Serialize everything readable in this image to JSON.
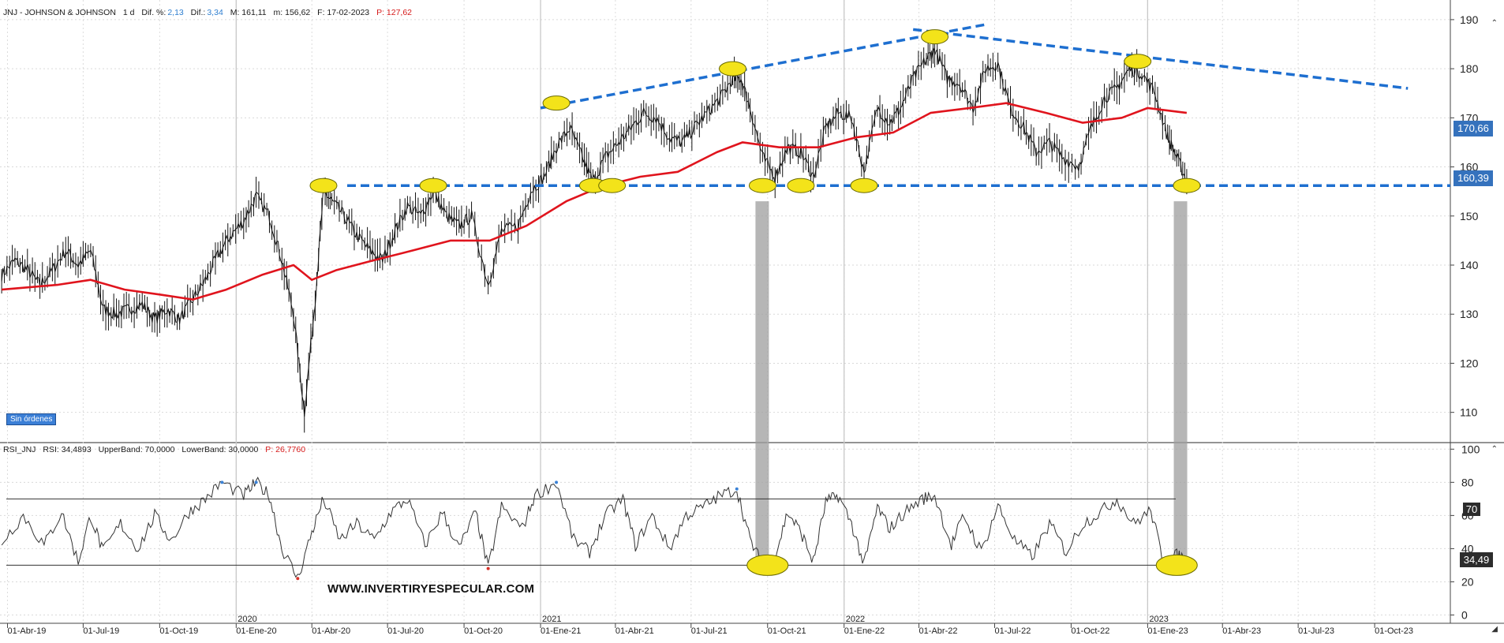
{
  "header": {
    "ticker": "JNJ - JOHNSON & JOHNSON",
    "timeframe": "1 d",
    "dif_pct_label": "Dif. %:",
    "dif_pct_value": "2,13",
    "dif_label": "Dif.:",
    "dif_value": "3,34",
    "max_label": "M: 161,11",
    "min_label": "m: 156,62",
    "date_label": "F: 17-02-2023",
    "p_label": "P: 127,62"
  },
  "orders_badge": "Sin órdenes",
  "watermark": "WWW.INVERTIRYESPECULAR.COM",
  "price_tags": {
    "ma": "170,66",
    "last": "160,39"
  },
  "rsi_header": {
    "label": "RSI_JNJ",
    "rsi": "RSI: 34,4893",
    "upper": "UpperBand: 70,0000",
    "lower": "LowerBand: 30,0000",
    "p": "P: 26,7760"
  },
  "rsi_tags": {
    "value": "34,49",
    "upper": "70"
  },
  "colors": {
    "price": "#111111",
    "ma": "#e0141d",
    "trend": "#1e6fd0",
    "marker": "#f3e31a",
    "rsi_over": "#3b82d6",
    "rsi_under": "#d6322a"
  },
  "chart_data": [
    {
      "type": "line",
      "title": "JNJ - JOHNSON & JOHNSON  1 d",
      "x_ticks": [
        "01-Abr-19",
        "01-Jul-19",
        "01-Oct-19",
        "01-Ene-20",
        "01-Abr-20",
        "01-Jul-20",
        "01-Oct-20",
        "01-Ene-21",
        "01-Abr-21",
        "01-Jul-21",
        "01-Oct-21",
        "01-Ene-22",
        "01-Abr-22",
        "01-Jul-22",
        "01-Oct-22",
        "01-Ene-23",
        "01-Abr-23",
        "01-Jul-23",
        "01-Oct-23"
      ],
      "year_labels": [
        "2020",
        "2021",
        "2022",
        "2023"
      ],
      "y_ticks": [
        110,
        120,
        130,
        140,
        150,
        160,
        170,
        180,
        190
      ],
      "ylim": [
        104,
        194
      ],
      "grid": true,
      "series": [
        {
          "name": "JNJ",
          "points": [
            [
              "2019-03-25",
              138
            ],
            [
              "2019-04-10",
              141
            ],
            [
              "2019-04-25",
              139
            ],
            [
              "2019-05-10",
              136
            ],
            [
              "2019-05-25",
              139
            ],
            [
              "2019-06-10",
              143
            ],
            [
              "2019-06-25",
              140
            ],
            [
              "2019-07-10",
              143
            ],
            [
              "2019-07-25",
              131
            ],
            [
              "2019-08-10",
              130
            ],
            [
              "2019-08-25",
              131
            ],
            [
              "2019-09-10",
              132
            ],
            [
              "2019-09-25",
              129
            ],
            [
              "2019-10-10",
              131
            ],
            [
              "2019-10-25",
              129
            ],
            [
              "2019-11-10",
              133
            ],
            [
              "2019-11-25",
              137
            ],
            [
              "2019-12-10",
              142
            ],
            [
              "2019-12-25",
              146
            ],
            [
              "2020-01-10",
              149
            ],
            [
              "2020-01-25",
              154
            ],
            [
              "2020-02-10",
              150
            ],
            [
              "2020-02-25",
              141
            ],
            [
              "2020-03-10",
              130
            ],
            [
              "2020-03-23",
              110
            ],
            [
              "2020-04-05",
              133
            ],
            [
              "2020-04-15",
              155
            ],
            [
              "2020-04-25",
              153
            ],
            [
              "2020-05-10",
              150
            ],
            [
              "2020-05-25",
              146
            ],
            [
              "2020-06-10",
              143
            ],
            [
              "2020-06-25",
              141
            ],
            [
              "2020-07-10",
              147
            ],
            [
              "2020-07-25",
              152
            ],
            [
              "2020-08-10",
              150
            ],
            [
              "2020-08-25",
              155
            ],
            [
              "2020-09-10",
              150
            ],
            [
              "2020-09-25",
              148
            ],
            [
              "2020-10-10",
              150
            ],
            [
              "2020-10-30",
              136
            ],
            [
              "2020-11-15",
              147
            ],
            [
              "2020-12-05",
              148
            ],
            [
              "2020-12-20",
              155
            ],
            [
              "2021-01-05",
              158
            ],
            [
              "2021-01-20",
              164
            ],
            [
              "2021-02-05",
              168
            ],
            [
              "2021-02-20",
              162
            ],
            [
              "2021-03-05",
              157
            ],
            [
              "2021-03-20",
              162
            ],
            [
              "2021-04-05",
              165
            ],
            [
              "2021-04-20",
              168
            ],
            [
              "2021-05-05",
              171
            ],
            [
              "2021-05-20",
              170
            ],
            [
              "2021-06-05",
              166
            ],
            [
              "2021-06-20",
              165
            ],
            [
              "2021-07-05",
              168
            ],
            [
              "2021-07-20",
              171
            ],
            [
              "2021-08-05",
              174
            ],
            [
              "2021-08-20",
              178
            ],
            [
              "2021-08-30",
              178
            ],
            [
              "2021-09-10",
              172
            ],
            [
              "2021-09-25",
              162
            ],
            [
              "2021-10-10",
              158
            ],
            [
              "2021-10-25",
              164
            ],
            [
              "2021-11-10",
              163
            ],
            [
              "2021-11-25",
              158
            ],
            [
              "2021-12-10",
              168
            ],
            [
              "2021-12-25",
              171
            ],
            [
              "2022-01-10",
              170
            ],
            [
              "2022-01-25",
              159
            ],
            [
              "2022-02-10",
              172
            ],
            [
              "2022-02-25",
              169
            ],
            [
              "2022-03-10",
              172
            ],
            [
              "2022-03-25",
              178
            ],
            [
              "2022-04-10",
              182
            ],
            [
              "2022-04-20",
              184
            ],
            [
              "2022-05-05",
              178
            ],
            [
              "2022-05-20",
              177
            ],
            [
              "2022-06-05",
              172
            ],
            [
              "2022-06-20",
              180
            ],
            [
              "2022-07-05",
              181
            ],
            [
              "2022-07-20",
              172
            ],
            [
              "2022-08-05",
              168
            ],
            [
              "2022-08-20",
              163
            ],
            [
              "2022-09-05",
              165
            ],
            [
              "2022-09-20",
              162
            ],
            [
              "2022-10-10",
              160
            ],
            [
              "2022-10-25",
              168
            ],
            [
              "2022-11-10",
              174
            ],
            [
              "2022-11-25",
              176
            ],
            [
              "2022-12-10",
              180
            ],
            [
              "2022-12-25",
              179
            ],
            [
              "2023-01-10",
              175
            ],
            [
              "2023-01-25",
              166
            ],
            [
              "2023-02-05",
              162
            ],
            [
              "2023-02-17",
              157
            ]
          ]
        },
        {
          "name": "MA",
          "points": [
            [
              "2019-03-25",
              135
            ],
            [
              "2019-06-01",
              136
            ],
            [
              "2019-07-10",
              137
            ],
            [
              "2019-08-20",
              135
            ],
            [
              "2019-10-01",
              134
            ],
            [
              "2019-11-10",
              133
            ],
            [
              "2019-12-20",
              135
            ],
            [
              "2020-02-01",
              138
            ],
            [
              "2020-03-10",
              140
            ],
            [
              "2020-04-01",
              137
            ],
            [
              "2020-05-01",
              139
            ],
            [
              "2020-06-15",
              141
            ],
            [
              "2020-08-01",
              143
            ],
            [
              "2020-09-15",
              145
            ],
            [
              "2020-11-01",
              145
            ],
            [
              "2020-12-15",
              148
            ],
            [
              "2021-02-01",
              153
            ],
            [
              "2021-03-15",
              156
            ],
            [
              "2021-05-01",
              158
            ],
            [
              "2021-06-15",
              159
            ],
            [
              "2021-08-01",
              163
            ],
            [
              "2021-09-01",
              165
            ],
            [
              "2021-10-15",
              164
            ],
            [
              "2021-12-01",
              164
            ],
            [
              "2022-01-15",
              166
            ],
            [
              "2022-03-01",
              167
            ],
            [
              "2022-04-15",
              171
            ],
            [
              "2022-06-01",
              172
            ],
            [
              "2022-07-15",
              173
            ],
            [
              "2022-09-01",
              171
            ],
            [
              "2022-10-15",
              169
            ],
            [
              "2022-12-01",
              170
            ],
            [
              "2023-01-01",
              172
            ],
            [
              "2023-02-17",
              171
            ]
          ]
        }
      ],
      "support_level": 156.2,
      "trendlines": [
        {
          "from": [
            "2021-01-01",
            172
          ],
          "to": [
            "2022-06-20",
            189
          ]
        },
        {
          "from": [
            "2022-03-25",
            188
          ],
          "to": [
            "2023-11-10",
            176
          ]
        }
      ],
      "markers": [
        [
          "2020-04-15",
          156.2
        ],
        [
          "2020-08-25",
          156.2
        ],
        [
          "2021-01-20",
          173
        ],
        [
          "2021-03-05",
          156.2
        ],
        [
          "2021-03-28",
          156.2
        ],
        [
          "2021-08-20",
          180
        ],
        [
          "2021-09-25",
          156.2
        ],
        [
          "2021-11-10",
          156.2
        ],
        [
          "2022-01-25",
          156.2
        ],
        [
          "2022-04-20",
          186.5
        ],
        [
          "2022-12-20",
          181.5
        ],
        [
          "2023-02-17",
          156.2
        ]
      ]
    },
    {
      "type": "line",
      "title": "RSI_JNJ",
      "y_ticks": [
        0,
        20,
        40,
        60,
        80,
        100
      ],
      "ylim": [
        -5,
        103
      ],
      "upper_band": 70,
      "lower_band": 30,
      "series": [
        {
          "name": "RSI",
          "points": [
            [
              "2019-03-25",
              44
            ],
            [
              "2019-04-20",
              60
            ],
            [
              "2019-05-15",
              42
            ],
            [
              "2019-06-05",
              62
            ],
            [
              "2019-06-25",
              32
            ],
            [
              "2019-07-10",
              60
            ],
            [
              "2019-07-25",
              38
            ],
            [
              "2019-08-15",
              55
            ],
            [
              "2019-09-05",
              40
            ],
            [
              "2019-09-25",
              60
            ],
            [
              "2019-10-15",
              45
            ],
            [
              "2019-11-05",
              62
            ],
            [
              "2019-11-25",
              70
            ],
            [
              "2019-12-15",
              80
            ],
            [
              "2020-01-10",
              72
            ],
            [
              "2020-01-25",
              80
            ],
            [
              "2020-02-10",
              72
            ],
            [
              "2020-02-25",
              40
            ],
            [
              "2020-03-15",
              22
            ],
            [
              "2020-04-01",
              50
            ],
            [
              "2020-04-15",
              70
            ],
            [
              "2020-05-05",
              45
            ],
            [
              "2020-05-25",
              55
            ],
            [
              "2020-06-15",
              45
            ],
            [
              "2020-07-05",
              62
            ],
            [
              "2020-07-25",
              70
            ],
            [
              "2020-08-15",
              42
            ],
            [
              "2020-09-05",
              62
            ],
            [
              "2020-09-25",
              40
            ],
            [
              "2020-10-15",
              62
            ],
            [
              "2020-10-30",
              28
            ],
            [
              "2020-11-15",
              65
            ],
            [
              "2020-12-10",
              52
            ],
            [
              "2020-12-25",
              72
            ],
            [
              "2021-01-20",
              80
            ],
            [
              "2021-02-10",
              45
            ],
            [
              "2021-03-01",
              38
            ],
            [
              "2021-03-20",
              60
            ],
            [
              "2021-04-10",
              70
            ],
            [
              "2021-04-25",
              42
            ],
            [
              "2021-05-15",
              60
            ],
            [
              "2021-06-05",
              40
            ],
            [
              "2021-06-25",
              60
            ],
            [
              "2021-07-15",
              65
            ],
            [
              "2021-08-05",
              72
            ],
            [
              "2021-08-25",
              76
            ],
            [
              "2021-09-10",
              45
            ],
            [
              "2021-09-25",
              30
            ],
            [
              "2021-10-10",
              35
            ],
            [
              "2021-10-25",
              62
            ],
            [
              "2021-11-10",
              50
            ],
            [
              "2021-11-25",
              32
            ],
            [
              "2021-12-10",
              68
            ],
            [
              "2021-12-25",
              72
            ],
            [
              "2022-01-10",
              55
            ],
            [
              "2022-01-25",
              30
            ],
            [
              "2022-02-10",
              65
            ],
            [
              "2022-02-25",
              52
            ],
            [
              "2022-03-15",
              62
            ],
            [
              "2022-04-05",
              70
            ],
            [
              "2022-04-20",
              72
            ],
            [
              "2022-05-10",
              42
            ],
            [
              "2022-05-25",
              60
            ],
            [
              "2022-06-15",
              38
            ],
            [
              "2022-07-05",
              66
            ],
            [
              "2022-07-25",
              45
            ],
            [
              "2022-08-15",
              35
            ],
            [
              "2022-09-05",
              55
            ],
            [
              "2022-09-25",
              38
            ],
            [
              "2022-10-15",
              55
            ],
            [
              "2022-11-05",
              62
            ],
            [
              "2022-11-25",
              70
            ],
            [
              "2022-12-15",
              55
            ],
            [
              "2023-01-05",
              63
            ],
            [
              "2023-01-20",
              32
            ],
            [
              "2023-02-05",
              36
            ],
            [
              "2023-02-17",
              34
            ]
          ]
        }
      ],
      "markers": [
        [
          "2021-10-01",
          30
        ],
        [
          "2023-02-05",
          30
        ]
      ]
    }
  ]
}
